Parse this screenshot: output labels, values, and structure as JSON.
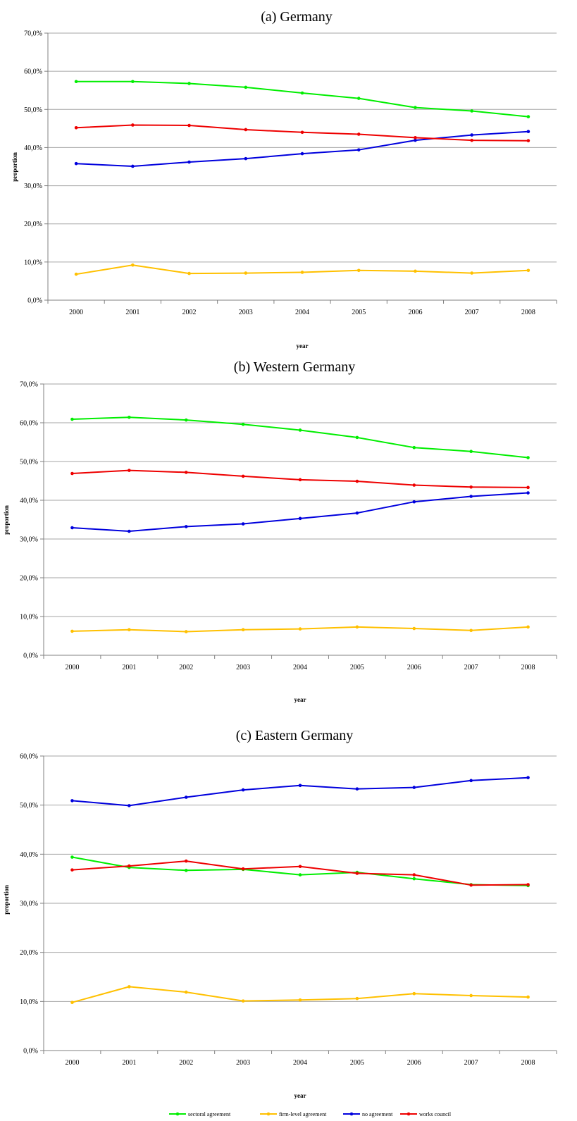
{
  "colors": {
    "sectoral agreement": "#00ee00",
    "firm-level agreement": "#ffc000",
    "no agreement": "#0000dd",
    "works council": "#ee0000",
    "gridline": "#a6a6a6",
    "axis": "#808080"
  },
  "legend": {
    "position": "bottom-center",
    "items": [
      "sectoral agreement",
      "firm-level agreement",
      "no agreement",
      "works council"
    ]
  },
  "chart_data": [
    {
      "type": "line",
      "title": "(a) Germany",
      "xlabel": "year",
      "ylabel": "proportion",
      "ylim": [
        0,
        70
      ],
      "yticks": [
        "0,0%",
        "10,0%",
        "20,0%",
        "30,0%",
        "40,0%",
        "50,0%",
        "60,0%",
        "70,0%"
      ],
      "grid": true,
      "categories": [
        "2000",
        "2001",
        "2002",
        "2003",
        "2004",
        "2005",
        "2006",
        "2007",
        "2008"
      ],
      "series": [
        {
          "name": "sectoral agreement",
          "values": [
            57.3,
            57.3,
            56.8,
            55.8,
            54.3,
            52.9,
            50.5,
            49.6,
            48.1
          ]
        },
        {
          "name": "firm-level agreement",
          "values": [
            6.8,
            9.2,
            7.0,
            7.1,
            7.3,
            7.8,
            7.6,
            7.1,
            7.8
          ]
        },
        {
          "name": "no agreement",
          "values": [
            35.8,
            35.1,
            36.2,
            37.1,
            38.4,
            39.4,
            41.9,
            43.3,
            44.2
          ]
        },
        {
          "name": "works council",
          "values": [
            45.2,
            45.9,
            45.8,
            44.7,
            44.0,
            43.5,
            42.6,
            41.9,
            41.8
          ]
        }
      ]
    },
    {
      "type": "line",
      "title": "(b) Western Germany",
      "xlabel": "year",
      "ylabel": "proportion",
      "ylim": [
        0,
        70
      ],
      "yticks": [
        "0,0%",
        "10,0%",
        "20,0%",
        "30,0%",
        "40,0%",
        "50,0%",
        "60,0%",
        "70,0%"
      ],
      "grid": true,
      "categories": [
        "2000",
        "2001",
        "2002",
        "2003",
        "2004",
        "2005",
        "2006",
        "2007",
        "2008"
      ],
      "series": [
        {
          "name": "sectoral agreement",
          "values": [
            60.9,
            61.4,
            60.7,
            59.6,
            58.1,
            56.2,
            53.6,
            52.6,
            51.0
          ]
        },
        {
          "name": "firm-level agreement",
          "values": [
            6.2,
            6.6,
            6.1,
            6.6,
            6.8,
            7.3,
            6.9,
            6.4,
            7.3
          ]
        },
        {
          "name": "no agreement",
          "values": [
            32.9,
            32.0,
            33.2,
            33.9,
            35.3,
            36.7,
            39.6,
            41.0,
            41.9
          ]
        },
        {
          "name": "works council",
          "values": [
            46.9,
            47.7,
            47.2,
            46.2,
            45.3,
            44.9,
            43.9,
            43.4,
            43.3
          ]
        }
      ]
    },
    {
      "type": "line",
      "title": "(c) Eastern Germany",
      "xlabel": "year",
      "ylabel": "proportion",
      "ylim": [
        0,
        60
      ],
      "yticks": [
        "0,0%",
        "10,0%",
        "20,0%",
        "30,0%",
        "40,0%",
        "50,0%",
        "60,0%"
      ],
      "grid": true,
      "categories": [
        "2000",
        "2001",
        "2002",
        "2003",
        "2004",
        "2005",
        "2006",
        "2007",
        "2008"
      ],
      "series": [
        {
          "name": "sectoral agreement",
          "values": [
            39.4,
            37.3,
            36.7,
            36.9,
            35.8,
            36.3,
            35.0,
            33.8,
            33.6
          ]
        },
        {
          "name": "firm-level agreement",
          "values": [
            9.8,
            13.0,
            11.9,
            10.1,
            10.3,
            10.6,
            11.6,
            11.2,
            10.9
          ]
        },
        {
          "name": "no agreement",
          "values": [
            50.9,
            49.9,
            51.6,
            53.1,
            54.0,
            53.3,
            53.6,
            55.0,
            55.6
          ]
        },
        {
          "name": "works council",
          "values": [
            36.8,
            37.6,
            38.6,
            37.0,
            37.5,
            36.1,
            35.8,
            33.7,
            33.8
          ]
        }
      ]
    }
  ]
}
